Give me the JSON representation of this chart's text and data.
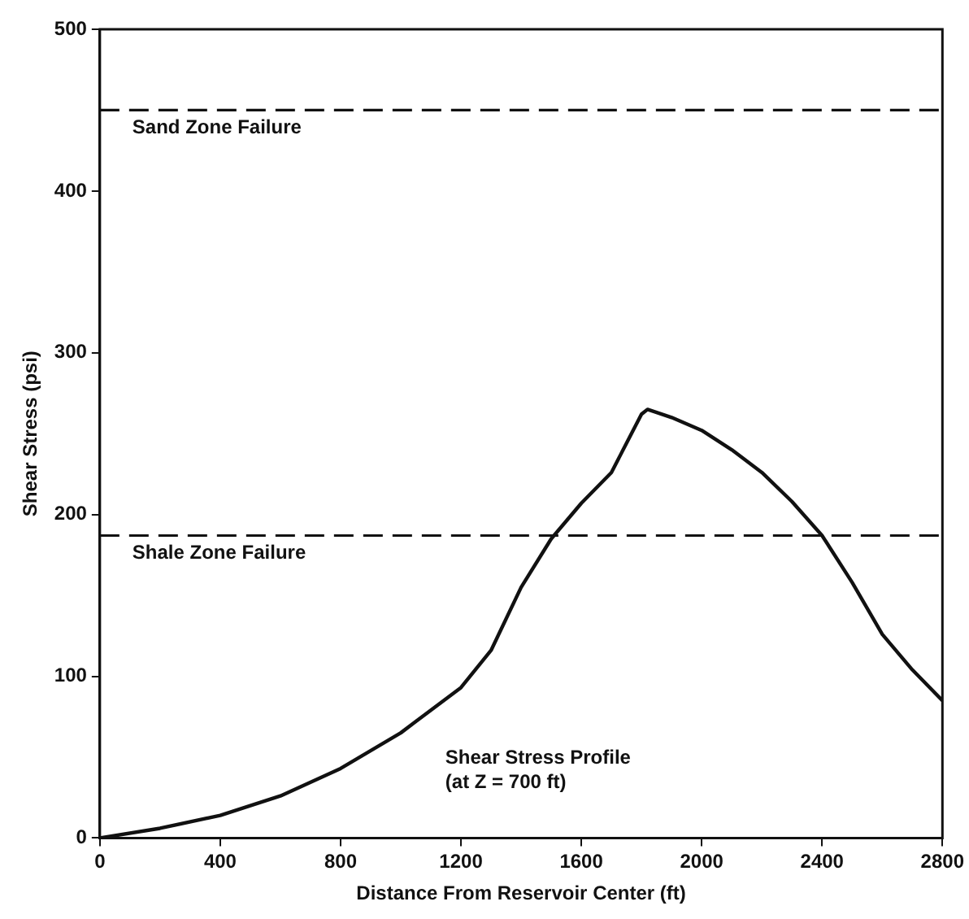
{
  "chart_data": {
    "type": "line",
    "xlabel": "Distance From Reservoir Center (ft)",
    "ylabel": "Shear Stress (psi)",
    "x": [
      0,
      200,
      400,
      600,
      800,
      1000,
      1200,
      1300,
      1400,
      1500,
      1600,
      1700,
      1800,
      1820,
      1900,
      2000,
      2100,
      2200,
      2300,
      2400,
      2500,
      2600,
      2700,
      2800
    ],
    "series": [
      {
        "color": "#111111",
        "values": [
          0,
          6,
          14,
          26,
          43,
          65,
          93,
          116,
          155,
          185,
          207,
          226,
          262,
          265,
          260,
          252,
          240,
          226,
          208,
          187,
          158,
          126,
          104,
          85
        ]
      }
    ],
    "xlim": [
      0,
      2800
    ],
    "xticks": [
      0,
      400,
      800,
      1200,
      1600,
      2000,
      2400,
      2800
    ],
    "ylim": [
      0,
      500
    ],
    "yticks": [
      0,
      100,
      200,
      300,
      400,
      500
    ],
    "ref_lines": [
      {
        "axis": "y",
        "value": 450,
        "label": "Sand Zone Failure",
        "color": "#111111",
        "line_style": "dashed"
      },
      {
        "axis": "y",
        "value": 187,
        "label": "Shale Zone Failure",
        "color": "#111111",
        "line_style": "dashed"
      }
    ],
    "annotations": [
      "Shear Stress Profile\n(at Z = 700 ft)"
    ],
    "grid": false,
    "legend": false,
    "marker": "none",
    "line_style": "solid"
  }
}
